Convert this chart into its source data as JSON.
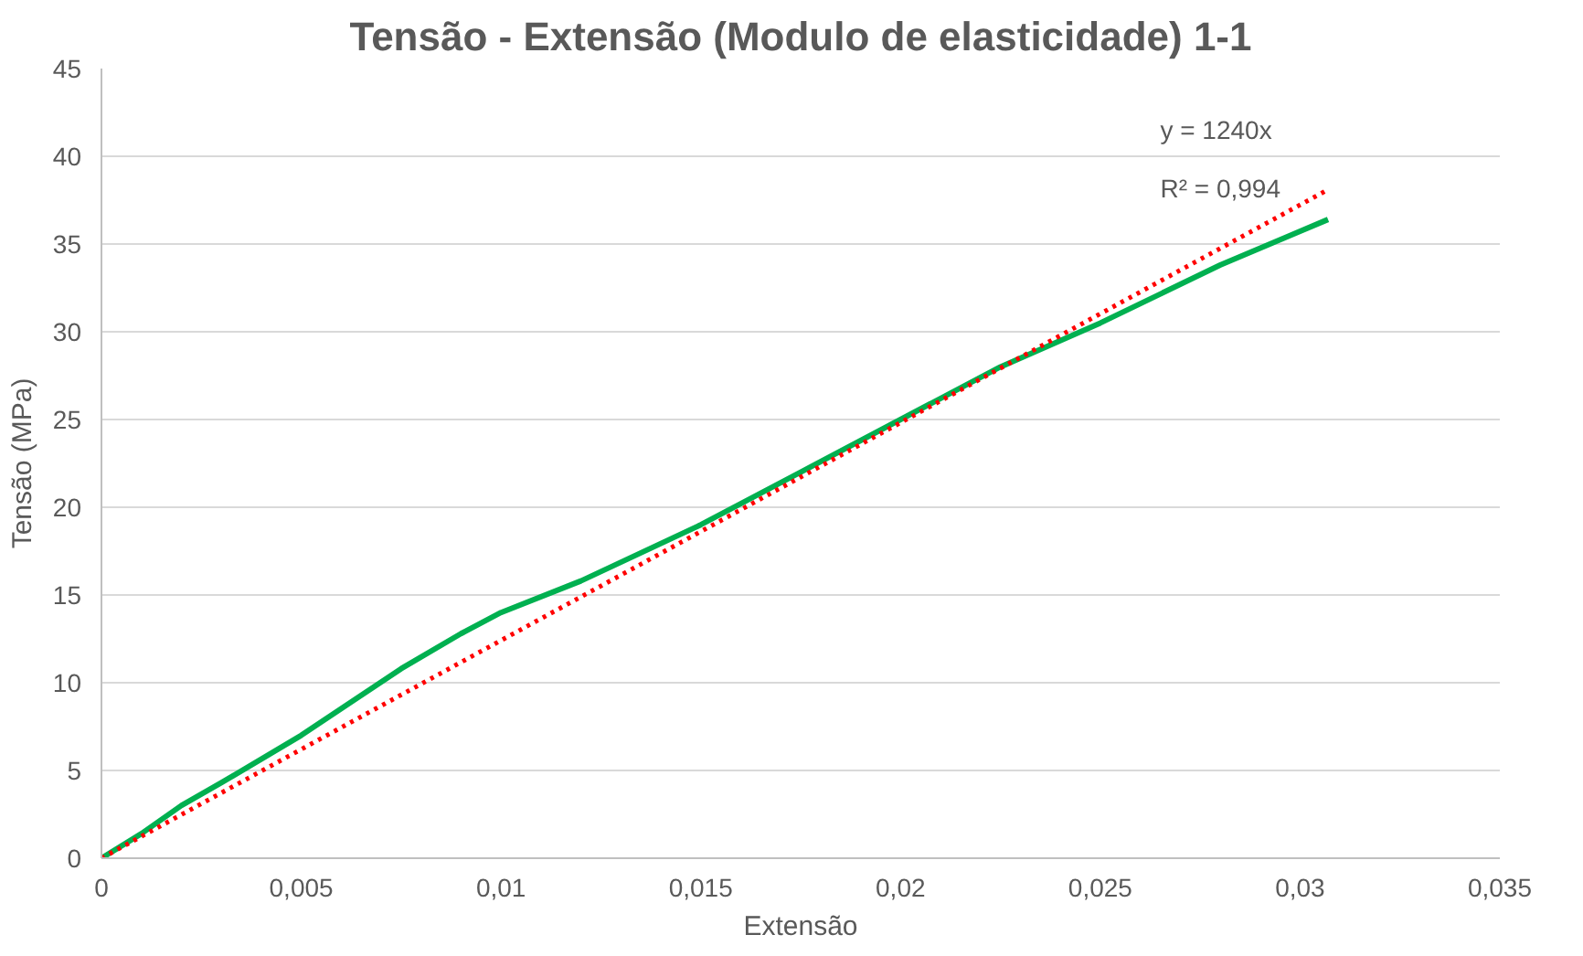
{
  "chart_data": {
    "type": "line",
    "title": "Tensão - Extensão (Modulo de elasticidade) 1-1",
    "xlabel": "Extensão",
    "ylabel": "Tensão (MPa)",
    "series": [
      {
        "color": "#00b050",
        "line_style": "solid",
        "x": [
          0,
          0.001,
          0.002,
          0.003,
          0.005,
          0.0075,
          0.009,
          0.01,
          0.012,
          0.015,
          0.0175,
          0.02,
          0.0225,
          0.025,
          0.028,
          0.0307
        ],
        "values": [
          0,
          1.4,
          3,
          4.3,
          7,
          10.8,
          12.8,
          14,
          15.8,
          19,
          22,
          25,
          28,
          30.5,
          33.8,
          36.4
        ]
      },
      {
        "color": "#ff0000",
        "line_style": "dotted",
        "x": [
          0,
          0.0307
        ],
        "values": [
          0,
          38.1
        ]
      }
    ],
    "annotations": [
      "y = 1240x",
      "R² = 0,994"
    ],
    "xlim": [
      0,
      0.035
    ],
    "xticks": [
      0,
      {
        "value": 0.005,
        "label": "0,005"
      },
      {
        "value": 0.01,
        "label": "0,01"
      },
      {
        "value": 0.015,
        "label": "0,015"
      },
      {
        "value": 0.02,
        "label": "0,02"
      },
      {
        "value": 0.025,
        "label": "0,025"
      },
      {
        "value": 0.03,
        "label": "0,03"
      },
      {
        "value": 0.035,
        "label": "0,035"
      }
    ],
    "ylim": [
      0,
      45
    ],
    "yticks": [
      0,
      5,
      10,
      15,
      20,
      25,
      30,
      35,
      40,
      45
    ],
    "grid": "y",
    "marker": "none"
  }
}
